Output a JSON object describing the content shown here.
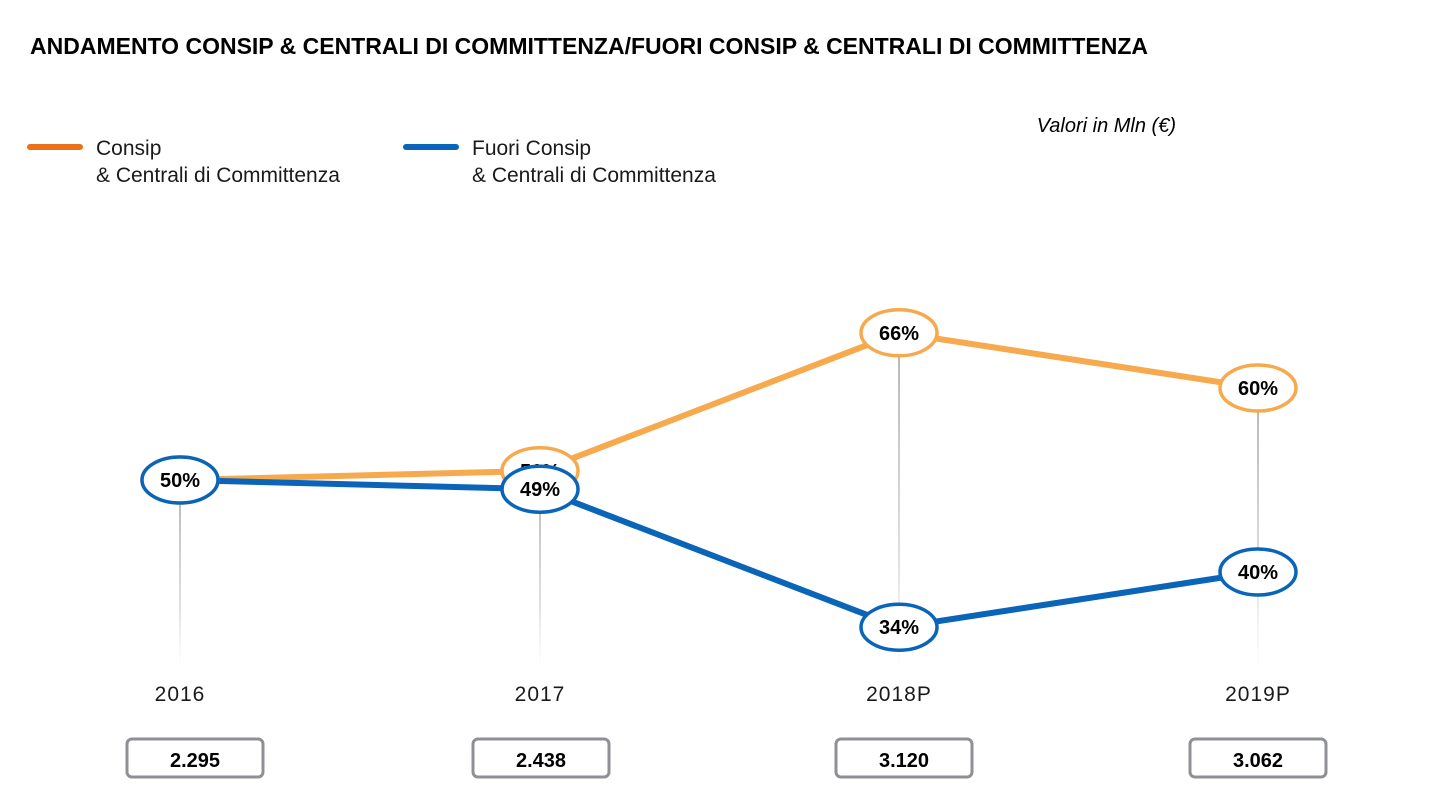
{
  "chart_data": {
    "type": "line",
    "title": "ANDAMENTO CONSIP & CENTRALI DI COMMITTENZA/FUORI CONSIP & CENTRALI DI COMMITTENZA",
    "unit_note": "Valori in Mln (€)",
    "categories": [
      "2016",
      "2017",
      "2018P",
      "2019P"
    ],
    "totals": [
      "2.295",
      "2.438",
      "3.120",
      "3.062"
    ],
    "ylim": [
      0,
      100
    ],
    "grid": false,
    "legend_position": "top-left",
    "series": [
      {
        "name_line1": "Consip",
        "name_line2": "& Centrali di Committenza",
        "color": "#F7A94E",
        "legend_color": "#E8711A",
        "values": [
          50,
          51,
          66,
          60
        ],
        "labels": [
          "50%",
          "51%",
          "66%",
          "60%"
        ]
      },
      {
        "name_line1": "Fuori Consip",
        "name_line2": "& Centrali di Committenza",
        "color": "#0A64B8",
        "legend_color": "#0A64B8",
        "values": [
          50,
          49,
          34,
          40
        ],
        "labels": [
          "50%",
          "49%",
          "34%",
          "40%"
        ]
      }
    ]
  }
}
